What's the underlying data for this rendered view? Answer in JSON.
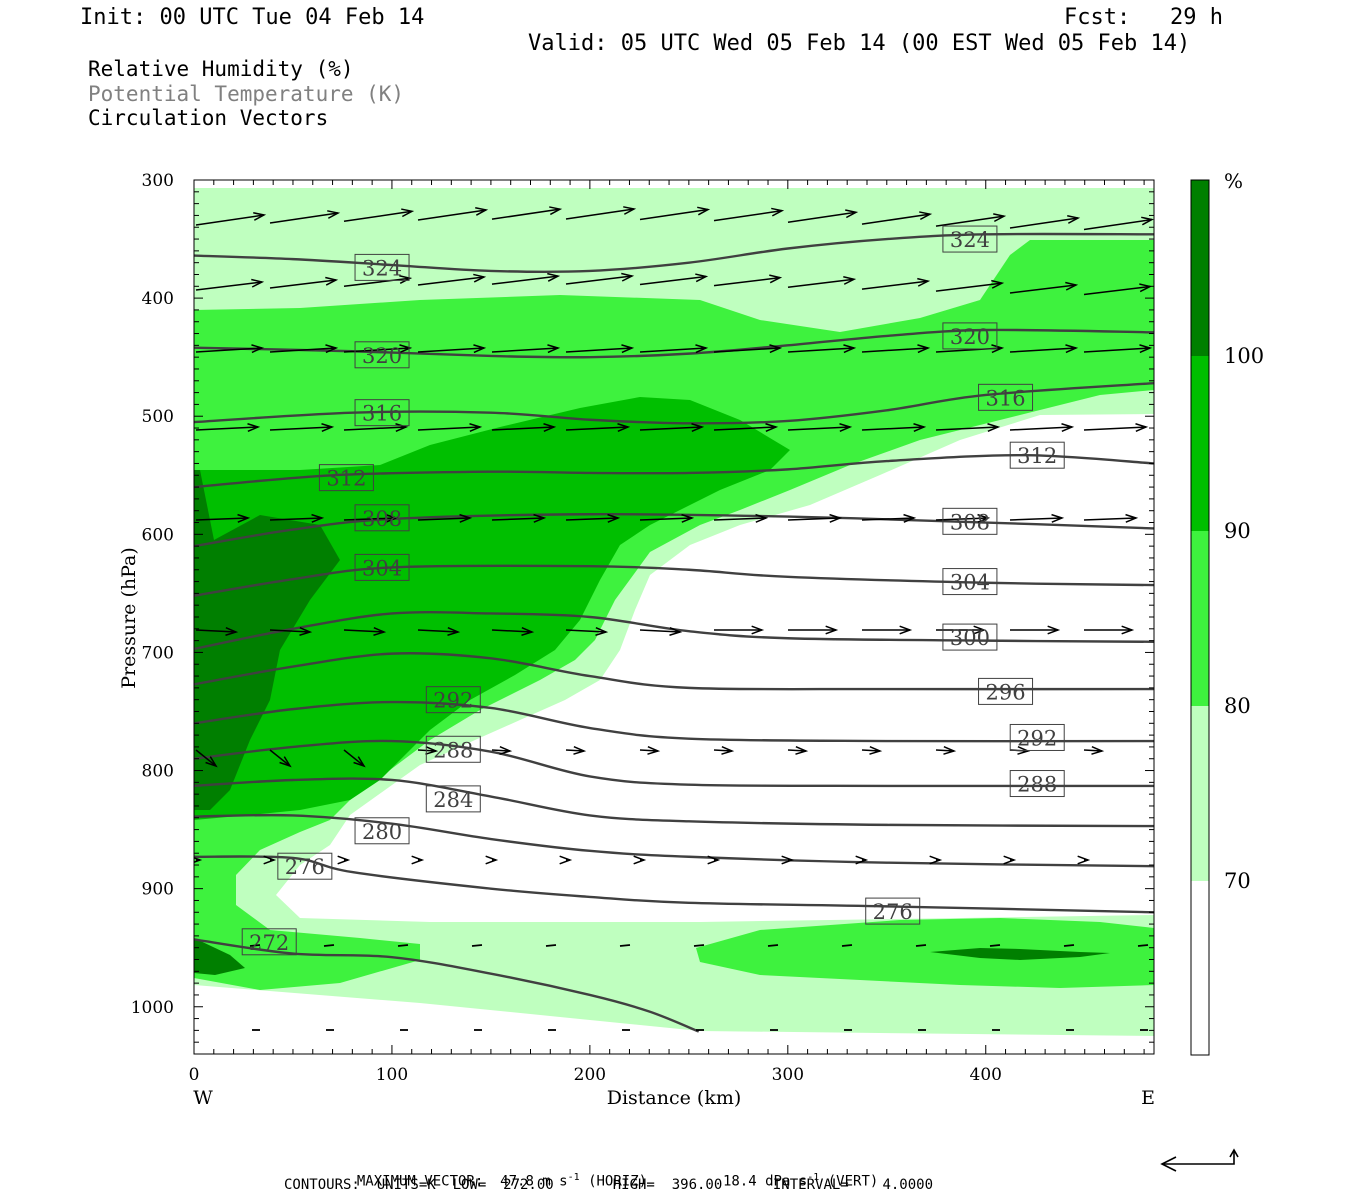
{
  "header": {
    "init": "Init: 00 UTC Tue 04 Feb 14",
    "fcst": "Fcst:   29 h",
    "valid": "Valid: 05 UTC Wed 05 Feb 14 (00 EST Wed 05 Feb 14)"
  },
  "legend": {
    "line1": "Relative Humidity (%)",
    "line2": "Potential Temperature (K)",
    "line3": "Circulation Vectors"
  },
  "footer": {
    "max_vector_label": "MAXIMUM VECTOR:",
    "max_vector_horiz_value": "47.8 m s",
    "max_vector_horiz_unit": "(HORIZ)",
    "max_vector_vert_value": "18.4 dPa s",
    "max_vector_vert_unit": "(VERT)",
    "exponent": "-1",
    "contours": "CONTOURS:  UNITS=K  LOW=  272.00       HIGH=  396.00      INTERVAL=    4.0000"
  },
  "colors": {
    "rh_70_80": "#bfffbf",
    "rh_80_90": "#3ef23e",
    "rh_90_100": "#00bf00",
    "rh_100": "#007f00",
    "theta_line": "#404040",
    "legend_theta_text": "#808080"
  },
  "chart_data": {
    "type": "heatmap",
    "xlabel": "Distance (km)",
    "ylabel": "Pressure (hPa)",
    "xlim": [
      0,
      485
    ],
    "ylim": [
      1040,
      300
    ],
    "y_scale": "linear, pressure decreasing upward",
    "x_ticks": [
      0,
      100,
      200,
      300,
      400
    ],
    "y_ticks": [
      300,
      400,
      500,
      600,
      700,
      800,
      900,
      1000
    ],
    "x_end_labels": {
      "left": "W",
      "right": "E"
    },
    "colorbar": {
      "unit": "%",
      "levels": [
        70,
        80,
        90,
        100
      ],
      "label_texts": [
        "70",
        "80",
        "90",
        "100"
      ]
    },
    "theta_contours_K": [
      {
        "value": 324,
        "label": "324",
        "points": [
          [
            0,
            364
          ],
          [
            50,
            367
          ],
          [
            100,
            372
          ],
          [
            150,
            377
          ],
          [
            200,
            377
          ],
          [
            250,
            370
          ],
          [
            300,
            358
          ],
          [
            350,
            350
          ],
          [
            400,
            346
          ],
          [
            485,
            346
          ]
        ],
        "labels_at": [
          [
            95,
            374
          ],
          [
            392,
            350
          ]
        ]
      },
      {
        "value": 320,
        "label": "320",
        "points": [
          [
            0,
            442
          ],
          [
            80,
            445
          ],
          [
            150,
            449
          ],
          [
            200,
            450
          ],
          [
            250,
            447
          ],
          [
            300,
            440
          ],
          [
            350,
            432
          ],
          [
            400,
            427
          ],
          [
            485,
            429
          ]
        ],
        "labels_at": [
          [
            95,
            448
          ],
          [
            392,
            432
          ]
        ]
      },
      {
        "value": 316,
        "label": "316",
        "points": [
          [
            0,
            505
          ],
          [
            80,
            497
          ],
          [
            150,
            497
          ],
          [
            200,
            503
          ],
          [
            250,
            506
          ],
          [
            300,
            504
          ],
          [
            350,
            495
          ],
          [
            400,
            482
          ],
          [
            485,
            472
          ]
        ],
        "labels_at": [
          [
            95,
            497
          ],
          [
            410,
            484
          ]
        ]
      },
      {
        "value": 312,
        "label": "312",
        "points": [
          [
            0,
            560
          ],
          [
            70,
            550
          ],
          [
            150,
            547
          ],
          [
            200,
            548
          ],
          [
            250,
            548
          ],
          [
            300,
            545
          ],
          [
            350,
            538
          ],
          [
            420,
            533
          ],
          [
            485,
            540
          ]
        ],
        "labels_at": [
          [
            77,
            552
          ],
          [
            426,
            533
          ]
        ]
      },
      {
        "value": 308,
        "label": "308",
        "points": [
          [
            0,
            610
          ],
          [
            50,
            596
          ],
          [
            100,
            587
          ],
          [
            200,
            583
          ],
          [
            300,
            585
          ],
          [
            400,
            590
          ],
          [
            485,
            595
          ]
        ],
        "labels_at": [
          [
            95,
            586
          ],
          [
            392,
            589
          ]
        ]
      },
      {
        "value": 304,
        "label": "304",
        "points": [
          [
            0,
            652
          ],
          [
            50,
            638
          ],
          [
            100,
            628
          ],
          [
            200,
            627
          ],
          [
            250,
            630
          ],
          [
            300,
            636
          ],
          [
            400,
            641
          ],
          [
            485,
            643
          ]
        ],
        "labels_at": [
          [
            95,
            628
          ],
          [
            392,
            640
          ]
        ]
      },
      {
        "value": 300,
        "label": "300",
        "points": [
          [
            0,
            697
          ],
          [
            50,
            680
          ],
          [
            100,
            667
          ],
          [
            150,
            667
          ],
          [
            200,
            670
          ],
          [
            250,
            682
          ],
          [
            300,
            688
          ],
          [
            400,
            690
          ],
          [
            485,
            691
          ]
        ],
        "labels_at": [
          [
            392,
            687
          ]
        ]
      },
      {
        "value": 296,
        "label": "296",
        "points": [
          [
            0,
            727
          ],
          [
            50,
            712
          ],
          [
            100,
            701
          ],
          [
            150,
            705
          ],
          [
            200,
            720
          ],
          [
            250,
            730
          ],
          [
            350,
            731
          ],
          [
            485,
            731
          ]
        ],
        "labels_at": [
          [
            410,
            733
          ]
        ]
      },
      {
        "value": 292,
        "label": "292",
        "points": [
          [
            0,
            760
          ],
          [
            50,
            748
          ],
          [
            100,
            742
          ],
          [
            150,
            747
          ],
          [
            200,
            764
          ],
          [
            250,
            773
          ],
          [
            350,
            775
          ],
          [
            485,
            775
          ]
        ],
        "labels_at": [
          [
            131,
            740
          ],
          [
            426,
            772
          ]
        ]
      },
      {
        "value": 288,
        "label": "288",
        "points": [
          [
            0,
            790
          ],
          [
            50,
            780
          ],
          [
            100,
            775
          ],
          [
            150,
            784
          ],
          [
            200,
            805
          ],
          [
            250,
            812
          ],
          [
            350,
            813
          ],
          [
            485,
            813
          ]
        ],
        "labels_at": [
          [
            131,
            782
          ],
          [
            426,
            811
          ]
        ]
      },
      {
        "value": 284,
        "label": "284",
        "points": [
          [
            0,
            813
          ],
          [
            50,
            808
          ],
          [
            100,
            808
          ],
          [
            150,
            822
          ],
          [
            200,
            838
          ],
          [
            250,
            843
          ],
          [
            350,
            846
          ],
          [
            485,
            847
          ]
        ],
        "labels_at": [
          [
            131,
            824
          ]
        ]
      },
      {
        "value": 280,
        "label": "280",
        "points": [
          [
            0,
            839
          ],
          [
            50,
            838
          ],
          [
            100,
            845
          ],
          [
            150,
            858
          ],
          [
            200,
            868
          ],
          [
            250,
            873
          ],
          [
            350,
            878
          ],
          [
            485,
            881
          ]
        ],
        "labels_at": [
          [
            95,
            851
          ]
        ]
      },
      {
        "value": 276,
        "label": "276",
        "points": [
          [
            0,
            873
          ],
          [
            50,
            874
          ],
          [
            80,
            886
          ],
          [
            150,
            900
          ],
          [
            200,
            907
          ],
          [
            250,
            912
          ],
          [
            350,
            915
          ],
          [
            485,
            920
          ]
        ],
        "labels_at": [
          [
            56,
            881
          ],
          [
            353,
            919
          ]
        ]
      },
      {
        "value": 272,
        "label": "272",
        "points": [
          [
            0,
            943
          ],
          [
            50,
            955
          ],
          [
            100,
            958
          ],
          [
            150,
            972
          ],
          [
            200,
            990
          ],
          [
            230,
            1004
          ],
          [
            255,
            1021
          ]
        ],
        "labels_at": [
          [
            38,
            945
          ]
        ]
      }
    ],
    "theta_label_texts": [
      "324",
      "320",
      "316",
      "312",
      "308",
      "304",
      "300",
      "296",
      "292",
      "288",
      "284",
      "280",
      "276",
      "272"
    ]
  }
}
